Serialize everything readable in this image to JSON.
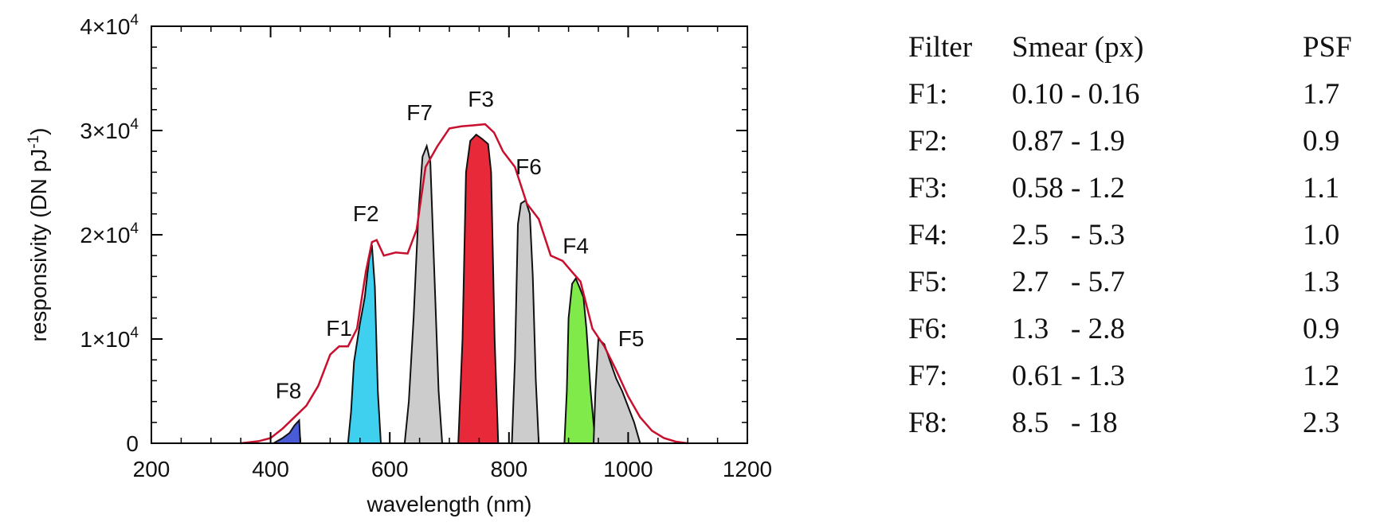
{
  "chart_data": {
    "type": "area",
    "xlabel": "wavelength (nm)",
    "ylabel": "responsivity (DN pJ",
    "ylabel_sup": "-1",
    "ylabel_end": ")",
    "xlim": [
      200,
      1200
    ],
    "ylim": [
      0,
      40000
    ],
    "x_ticks": [
      200,
      400,
      600,
      800,
      1000,
      1200
    ],
    "x_tick_labels": [
      "200",
      "400",
      "600",
      "800",
      "1000",
      "1200"
    ],
    "y_ticks": [
      0,
      10000,
      20000,
      30000,
      40000
    ],
    "y_tick_labels": [
      {
        "base": "0",
        "exp": ""
      },
      {
        "base": "1×10",
        "exp": "4"
      },
      {
        "base": "2×10",
        "exp": "4"
      },
      {
        "base": "3×10",
        "exp": "4"
      },
      {
        "base": "4×10",
        "exp": "4"
      }
    ],
    "grid": false,
    "envelope": {
      "name": "F1",
      "color": "#c8102e",
      "label_at": [
        515,
        10300
      ],
      "points": [
        [
          350,
          0
        ],
        [
          380,
          200
        ],
        [
          400,
          500
        ],
        [
          420,
          1400
        ],
        [
          440,
          2500
        ],
        [
          460,
          3600
        ],
        [
          480,
          5500
        ],
        [
          500,
          8500
        ],
        [
          515,
          9300
        ],
        [
          530,
          9300
        ],
        [
          545,
          11000
        ],
        [
          560,
          16500
        ],
        [
          570,
          19300
        ],
        [
          578,
          19500
        ],
        [
          590,
          18000
        ],
        [
          610,
          18300
        ],
        [
          630,
          18200
        ],
        [
          645,
          20500
        ],
        [
          660,
          26500
        ],
        [
          680,
          28500
        ],
        [
          700,
          30200
        ],
        [
          720,
          30400
        ],
        [
          740,
          30500
        ],
        [
          760,
          30600
        ],
        [
          775,
          29800
        ],
        [
          790,
          28000
        ],
        [
          810,
          26500
        ],
        [
          830,
          23000
        ],
        [
          850,
          21500
        ],
        [
          870,
          18000
        ],
        [
          890,
          17500
        ],
        [
          905,
          16500
        ],
        [
          920,
          15500
        ],
        [
          940,
          11000
        ],
        [
          960,
          9300
        ],
        [
          980,
          7000
        ],
        [
          1000,
          4500
        ],
        [
          1020,
          2500
        ],
        [
          1040,
          1200
        ],
        [
          1060,
          500
        ],
        [
          1080,
          150
        ],
        [
          1100,
          0
        ]
      ]
    },
    "filters": [
      {
        "name": "F8",
        "color": "#4a5bd8",
        "label_at": [
          430,
          4300
        ],
        "points": [
          [
            405,
            0
          ],
          [
            420,
            500
          ],
          [
            432,
            1000
          ],
          [
            440,
            1700
          ],
          [
            448,
            2200
          ],
          [
            450,
            0
          ]
        ]
      },
      {
        "name": "F2",
        "color": "#3fd0f0",
        "label_at": [
          560,
          21300
        ],
        "points": [
          [
            530,
            0
          ],
          [
            535,
            3000
          ],
          [
            540,
            7800
          ],
          [
            550,
            11500
          ],
          [
            558,
            14000
          ],
          [
            565,
            17500
          ],
          [
            570,
            19000
          ],
          [
            575,
            15000
          ],
          [
            580,
            5000
          ],
          [
            585,
            0
          ]
        ]
      },
      {
        "name": "F7",
        "color": "#cccccc",
        "label_at": [
          650,
          31000
        ],
        "points": [
          [
            625,
            0
          ],
          [
            632,
            4000
          ],
          [
            640,
            12000
          ],
          [
            648,
            22000
          ],
          [
            655,
            27500
          ],
          [
            662,
            28500
          ],
          [
            668,
            27000
          ],
          [
            675,
            16000
          ],
          [
            682,
            5000
          ],
          [
            688,
            0
          ]
        ]
      },
      {
        "name": "F3",
        "color": "#e8293a",
        "label_at": [
          753,
          32300
        ],
        "points": [
          [
            715,
            0
          ],
          [
            722,
            10000
          ],
          [
            728,
            26000
          ],
          [
            735,
            29000
          ],
          [
            745,
            29600
          ],
          [
            755,
            29200
          ],
          [
            765,
            28700
          ],
          [
            770,
            26000
          ],
          [
            776,
            10000
          ],
          [
            782,
            0
          ]
        ]
      },
      {
        "name": "F6",
        "color": "#cccccc",
        "label_at": [
          833,
          25800
        ],
        "points": [
          [
            805,
            0
          ],
          [
            810,
            8000
          ],
          [
            815,
            21000
          ],
          [
            820,
            23000
          ],
          [
            828,
            23300
          ],
          [
            835,
            22000
          ],
          [
            840,
            16000
          ],
          [
            845,
            6000
          ],
          [
            850,
            0
          ]
        ]
      },
      {
        "name": "F4",
        "color": "#7fea4a",
        "label_at": [
          912,
          18200
        ],
        "points": [
          [
            893,
            0
          ],
          [
            897,
            5000
          ],
          [
            900,
            12000
          ],
          [
            906,
            15300
          ],
          [
            912,
            15800
          ],
          [
            918,
            15000
          ],
          [
            925,
            14000
          ],
          [
            930,
            11000
          ],
          [
            937,
            5000
          ],
          [
            945,
            0
          ]
        ]
      },
      {
        "name": "F5",
        "color": "#cccccc",
        "label_at": [
          1005,
          9300
        ],
        "points": [
          [
            942,
            0
          ],
          [
            945,
            5000
          ],
          [
            950,
            10000
          ],
          [
            960,
            9500
          ],
          [
            970,
            7800
          ],
          [
            980,
            6200
          ],
          [
            990,
            5000
          ],
          [
            1000,
            3500
          ],
          [
            1010,
            2000
          ],
          [
            1020,
            0
          ]
        ]
      }
    ]
  },
  "table": {
    "headers": [
      "Filter",
      "Smear (px)",
      "PSF"
    ],
    "rows": [
      {
        "filter": "F1:",
        "smear": "0.10 - 0.16",
        "psf": "1.7"
      },
      {
        "filter": "F2:",
        "smear": "0.87 - 1.9",
        "psf": "0.9"
      },
      {
        "filter": "F3:",
        "smear": "0.58 - 1.2",
        "psf": "1.1"
      },
      {
        "filter": "F4:",
        "smear": "2.5   - 5.3",
        "psf": "1.0"
      },
      {
        "filter": "F5:",
        "smear": "2.7   - 5.7",
        "psf": "1.3"
      },
      {
        "filter": "F6:",
        "smear": "1.3   - 2.8",
        "psf": "0.9"
      },
      {
        "filter": "F7:",
        "smear": "0.61 - 1.3",
        "psf": "1.2"
      },
      {
        "filter": "F8:",
        "smear": "8.5   - 18",
        "psf": "2.3"
      }
    ]
  }
}
